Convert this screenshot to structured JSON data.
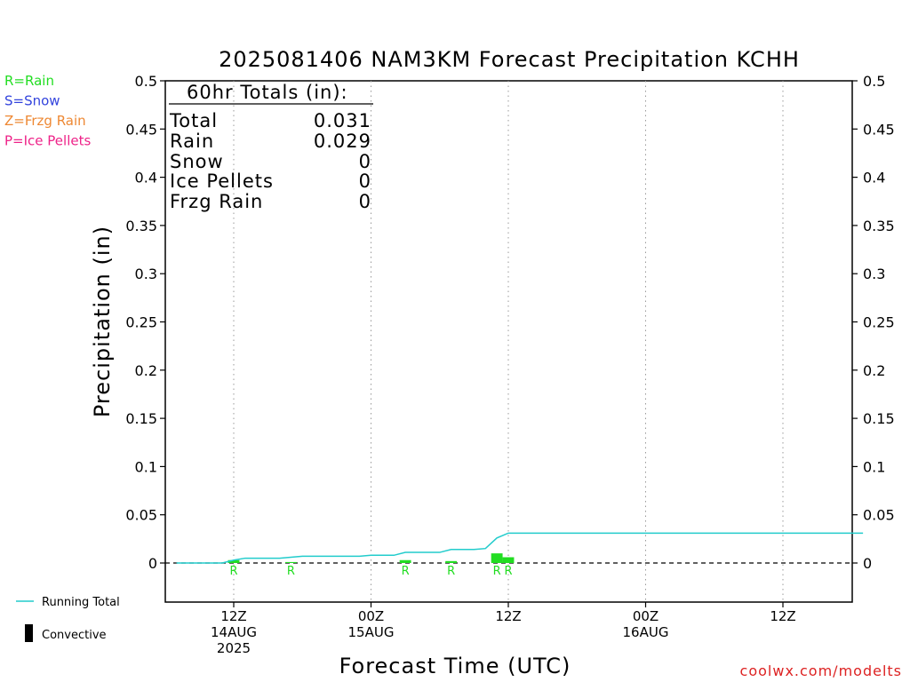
{
  "title": "2025081406 NAM3KM Forecast Precipitation KCHH",
  "ylabel": "Precipitation (in)",
  "xlabel": "Forecast Time (UTC)",
  "credit": "coolwx.com/modelts",
  "type_legend": [
    {
      "text": "R=Rain",
      "color": "#22dd22"
    },
    {
      "text": "S=Snow",
      "color": "#3344dd"
    },
    {
      "text": "Z=Frzg Rain",
      "color": "#ee8833"
    },
    {
      "text": "P=Ice Pellets",
      "color": "#ee2288"
    }
  ],
  "bottom_legend": {
    "running_total": "Running Total",
    "convective": "Convective"
  },
  "totals": {
    "header": "60hr Totals (in):",
    "rows": [
      {
        "label": "Total",
        "value": "0.031"
      },
      {
        "label": "Rain",
        "value": "0.029"
      },
      {
        "label": "Snow",
        "value": "0"
      },
      {
        "label": "Ice Pellets",
        "value": "0"
      },
      {
        "label": "Frzg Rain",
        "value": "0"
      }
    ]
  },
  "chart_data": {
    "type": "bar",
    "title": "2025081406 NAM3KM Forecast Precipitation KCHH",
    "xlabel": "Forecast Time (UTC)",
    "ylabel": "Precipitation (in)",
    "ylim": [
      -0.04,
      0.5
    ],
    "xlim": [
      1,
      61
    ],
    "x_unit": "forecast hour",
    "yticks": [
      "0.5",
      "0.45",
      "0.4",
      "0.35",
      "0.3",
      "0.25",
      "0.2",
      "0.15",
      "0.1",
      "0.05",
      "0"
    ],
    "ytick_values": [
      0.5,
      0.45,
      0.4,
      0.35,
      0.3,
      0.25,
      0.2,
      0.15,
      0.1,
      0.05,
      0
    ],
    "xticks": [
      {
        "x": 6,
        "lines": [
          "12Z",
          "14AUG",
          "2025"
        ]
      },
      {
        "x": 18,
        "lines": [
          "00Z",
          "15AUG"
        ]
      },
      {
        "x": 30,
        "lines": [
          "12Z"
        ]
      },
      {
        "x": 42,
        "lines": [
          "00Z",
          "16AUG"
        ]
      },
      {
        "x": 54,
        "lines": [
          "12Z"
        ]
      }
    ],
    "grid": "vertical dotted",
    "series": [
      {
        "name": "Running Total",
        "kind": "line",
        "color": "#22cccc",
        "x": [
          1,
          5,
          6,
          7,
          10,
          11,
          12,
          17,
          18,
          19,
          20,
          21,
          22,
          23,
          24,
          25,
          26,
          27,
          28,
          29,
          30,
          61
        ],
        "y": [
          0,
          0,
          0.003,
          0.005,
          0.005,
          0.006,
          0.007,
          0.007,
          0.008,
          0.008,
          0.008,
          0.011,
          0.011,
          0.011,
          0.011,
          0.014,
          0.014,
          0.014,
          0.015,
          0.026,
          0.031,
          0.031
        ]
      },
      {
        "name": "Rain",
        "kind": "bar",
        "color": "#22dd22",
        "x": [
          6,
          21,
          25,
          29,
          30
        ],
        "values": [
          0.003,
          0.003,
          0.002,
          0.01,
          0.006
        ],
        "type_labels": [
          "R",
          "R",
          "R",
          "R",
          "R"
        ]
      },
      {
        "name": "Rain",
        "kind": "bar",
        "color": "#22dd22",
        "x": [
          11
        ],
        "values": [
          0.001
        ],
        "type_labels": [
          "R"
        ]
      }
    ]
  }
}
